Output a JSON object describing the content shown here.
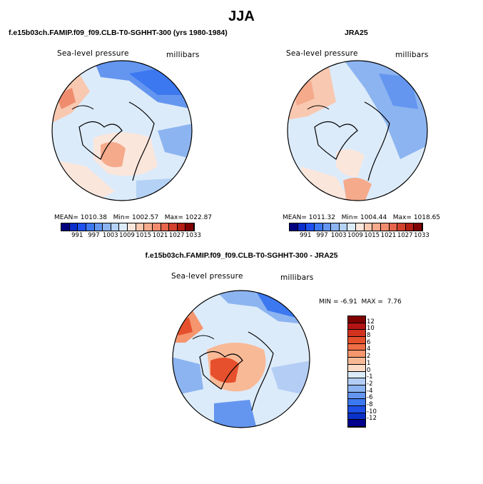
{
  "season_title": "JJA",
  "panels": [
    {
      "title": "f.e15b03ch.FAMIP.f09_f09.CLB-T0-SGHHT-300 (yrs 1980-1984)",
      "variable": "Sea-level pressure",
      "units": "millibars",
      "mean": "1010.38",
      "min": "1002.57",
      "max": "1022.87"
    },
    {
      "title": "JRA25",
      "variable": "Sea-level pressure",
      "units": "millibars",
      "mean": "1011.32",
      "min": "1004.44",
      "max": "1018.65"
    },
    {
      "title": "f.e15b03ch.FAMIP.f09_f09.CLB-T0-SGHHT-300 - JRA25",
      "variable": "Sea-level pressure",
      "units": "millibars",
      "min": "-6.91",
      "max": "7.76"
    }
  ],
  "stat_labels": {
    "mean": "MEAN=",
    "min": "Min=",
    "max": "Max=",
    "diff_min": "MIN =",
    "diff_max": "MAX ="
  },
  "colorbar_abs": {
    "labels": [
      "991",
      "997",
      "1003",
      "1009",
      "1015",
      "1021",
      "1027",
      "1033"
    ],
    "colors": [
      "#00007f",
      "#0a2dcc",
      "#1e50f0",
      "#3c78f0",
      "#6496f0",
      "#8cb4f0",
      "#b4d2f5",
      "#dcebfa",
      "#fbe6dc",
      "#f8c8b0",
      "#f5aa8c",
      "#f08c6e",
      "#e6644b",
      "#d2412d",
      "#b41e14",
      "#7f0000"
    ]
  },
  "colorbar_diff": {
    "labels": [
      "12",
      "10",
      "8",
      "6",
      "4",
      "2",
      "1",
      "0",
      "-1",
      "-2",
      "-4",
      "-6",
      "-8",
      "-10",
      "-12"
    ],
    "colors": [
      "#800000",
      "#b41414",
      "#d2321e",
      "#e6502d",
      "#f06e46",
      "#f5966e",
      "#f8b996",
      "#fcdcc6",
      "#dcebfa",
      "#b4cdf5",
      "#8cb4f0",
      "#6496f0",
      "#3c78f0",
      "#1e50e6",
      "#0a32c8",
      "#00008c"
    ]
  }
}
